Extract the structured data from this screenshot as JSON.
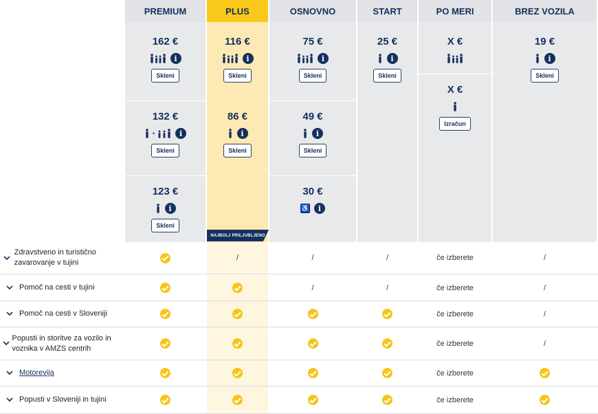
{
  "plans": [
    {
      "key": "premium",
      "name": "PREMIUM"
    },
    {
      "key": "plus",
      "name": "PLUS"
    },
    {
      "key": "osnovno",
      "name": "OSNOVNO"
    },
    {
      "key": "start",
      "name": "START"
    },
    {
      "key": "pomeri",
      "name": "PO MERI"
    },
    {
      "key": "brez",
      "name": "BREZ VOZILA"
    }
  ],
  "offers": {
    "premium_family": {
      "price": "162 €",
      "button": "Skleni",
      "icon": "family-icon"
    },
    "premium_plus_family": {
      "price": "132 €",
      "button": "Skleni",
      "icon": "person-plus-family-icon"
    },
    "premium_single": {
      "price": "123 €",
      "button": "Skleni",
      "icon": "person-icon"
    },
    "plus_family": {
      "price": "116 €",
      "button": "Skleni",
      "icon": "family-icon"
    },
    "plus_single": {
      "price": "86 €",
      "button": "Skleni",
      "icon": "person-icon"
    },
    "osnovno_family": {
      "price": "75 €",
      "button": "Skleni",
      "icon": "family-icon"
    },
    "osnovno_single": {
      "price": "49 €",
      "button": "Skleni",
      "icon": "person-icon"
    },
    "osnovno_disabled": {
      "price": "30 €",
      "icon": "wheelchair-icon"
    },
    "start_single": {
      "price": "25 €",
      "button": "Skleni",
      "icon": "person-icon"
    },
    "pomeri_family": {
      "price": "X €",
      "icon": "family-icon"
    },
    "pomeri_single": {
      "price": "X €",
      "button": "Izračun",
      "icon": "person-icon"
    },
    "brez_single": {
      "price": "19 €",
      "button": "Skleni",
      "icon": "person-icon"
    }
  },
  "badge": "NAJBOLJ PRILJUBLJENO",
  "features": [
    {
      "label": "Zdravstveno in turistično zavarovanje v tujini",
      "values": [
        "check",
        "/",
        "/",
        "/",
        "če izberete",
        "/"
      ]
    },
    {
      "label": "Pomoč na cesti v tujini",
      "values": [
        "check",
        "check",
        "/",
        "/",
        "če izberete",
        "/"
      ]
    },
    {
      "label": "Pomoč na cesti v Sloveniji",
      "values": [
        "check",
        "check",
        "check",
        "check",
        "če izberete",
        "/"
      ]
    },
    {
      "label": "Popusti in storitve za vozilo in voznika v AMZS centrih",
      "values": [
        "check",
        "check",
        "check",
        "check",
        "če izberete",
        "/"
      ]
    },
    {
      "label": "Motorevija",
      "link": true,
      "values": [
        "check",
        "check",
        "check",
        "check",
        "če izberete",
        "check"
      ]
    },
    {
      "label": "Popusti v Sloveniji in tujini",
      "values": [
        "check",
        "check",
        "check",
        "check",
        "če izberete",
        "check"
      ]
    }
  ],
  "colors": {
    "navy": "#14305e",
    "yellow": "#f8c81a",
    "plus_bg": "#fde9b4",
    "grey_bg": "#e8e9eb",
    "check": "#f5c518"
  }
}
